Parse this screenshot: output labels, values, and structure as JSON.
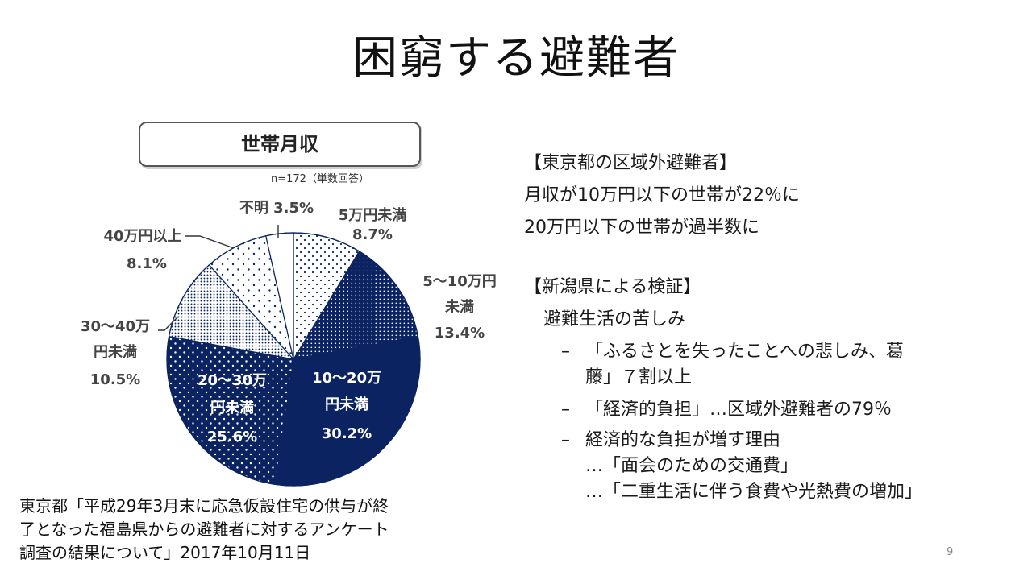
{
  "slide": {
    "title": "困窮する避難者",
    "page_number": "9"
  },
  "chart_box": {
    "title": "世帯月収",
    "note": "n=172（単数回答）"
  },
  "chart_data": {
    "type": "pie",
    "title": "世帯月収",
    "n_note": "n=172（単数回答）",
    "slices": [
      {
        "label": "5万円未満",
        "value": 8.7,
        "value_label": "8.7%",
        "pattern": "sparse-dots"
      },
      {
        "label": "5～10万円未満",
        "value": 13.4,
        "value_label": "13.4%",
        "pattern": "dense-navy"
      },
      {
        "label": "10～20万円未満",
        "value": 30.2,
        "value_label": "30.2%",
        "pattern": "solid-navy"
      },
      {
        "label": "20～30万円未満",
        "value": 25.6,
        "value_label": "25.6%",
        "pattern": "white-dots-navy"
      },
      {
        "label": "30～40万円未満",
        "value": 10.5,
        "value_label": "10.5%",
        "pattern": "light-dots"
      },
      {
        "label": "40万円以上",
        "value": 8.1,
        "value_label": "8.1%",
        "pattern": "mid-dots"
      },
      {
        "label": "不明",
        "value": 3.5,
        "value_label": "3.5%",
        "pattern": "white"
      }
    ],
    "label_texts": {
      "s0_line1": "5万円未満",
      "s0_line2": "8.7%",
      "s1_line1": "5～10万円",
      "s1_line2": "未満",
      "s1_line3": "13.4%",
      "s2_line1": "10～20万",
      "s2_line2": "円未満",
      "s2_line3": "30.2%",
      "s3_line1": "20～30万",
      "s3_line2": "円未満",
      "s3_line3": "25.6%",
      "s4_line1": "30～40万",
      "s4_line2": "円未満",
      "s4_line3": "10.5%",
      "s5_line1": "40万円以上",
      "s5_line2": "8.1%",
      "s6_line1": "不明 3.5%"
    },
    "colors": {
      "navy": "#0b2461",
      "dot": "#0b2461",
      "edge": "#ffffff"
    }
  },
  "right": {
    "tokyo_heading": "【東京都の区域外避難者】",
    "tokyo_line1": "月収が10万円以下の世帯が22％に",
    "tokyo_line2": "20万円以下の世帯が過半数に",
    "niigata_heading": "【新潟県による検証】",
    "niigata_sub": "避難生活の苦しみ",
    "bullets": [
      {
        "dash": "–",
        "line1": "「ふるさとを失ったことへの悲しみ、葛",
        "line2": "藤」７割以上"
      },
      {
        "dash": "–",
        "line1": "「経済的負担」…区域外避難者の79％"
      },
      {
        "dash": "–",
        "line1": "経済的な負担が増す理由",
        "line2": "…「面会のための交通費」",
        "line3": "…「二重生活に伴う食費や光熱費の増加」"
      }
    ]
  },
  "source": {
    "line1": "東京都「平成29年3月末に応急仮設住宅の供与が終",
    "line2": "了となった福島県からの避難者に対するアンケート",
    "line3": "調査の結果について」2017年10月11日"
  }
}
